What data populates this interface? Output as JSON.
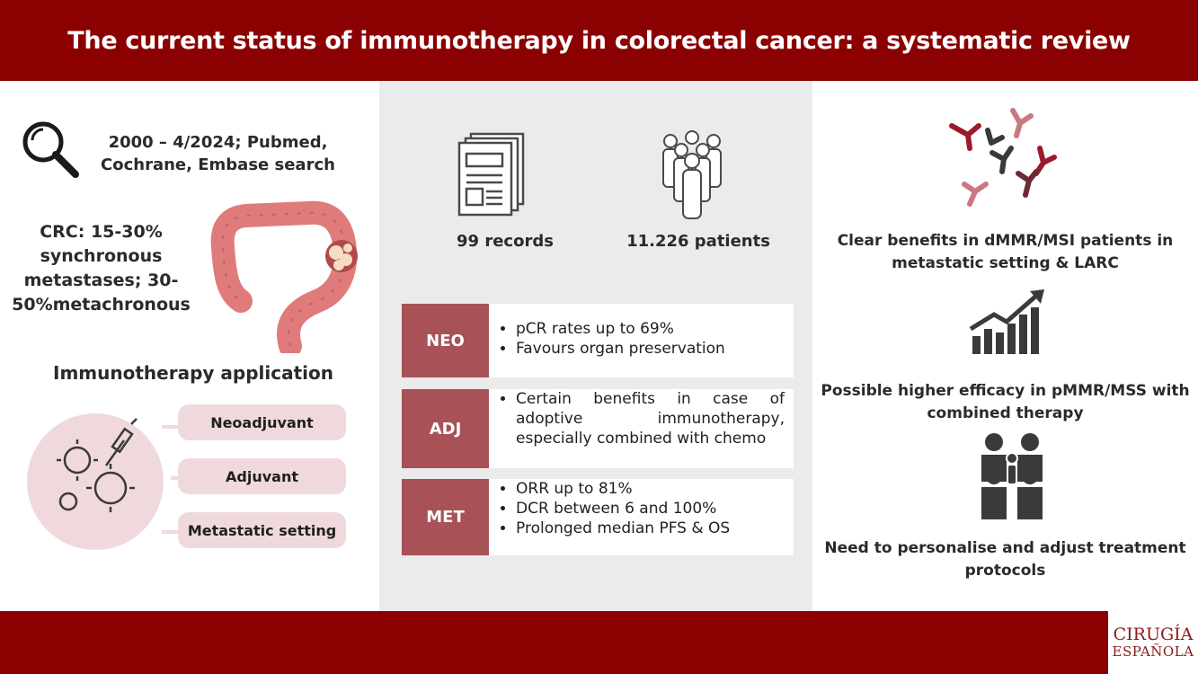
{
  "header": {
    "title": "The current status of immunotherapy in colorectal cancer: a systematic review"
  },
  "left": {
    "search_text": "2000 – 4/2024; Pubmed, Cochrane, Embase search",
    "crc_text": "CRC: 15-30% synchronous metastases; 30-50%metachronous",
    "application_title": "Immunotherapy application",
    "applications": [
      "Neoadjuvant",
      "Adjuvant",
      "Metastatic setting"
    ]
  },
  "middle": {
    "records": "99 records",
    "patients": "11.226 patients",
    "rows": [
      {
        "tag": "NEO",
        "items": [
          "pCR rates up to 69%",
          "Favours organ preservation"
        ]
      },
      {
        "tag": "ADJ",
        "items": [
          "Certain benefits in case of adoptive immunotherapy, especially combined with chemo"
        ]
      },
      {
        "tag": "MET",
        "items": [
          "ORR up to 81%",
          "DCR between 6 and 100%",
          "Prolonged median PFS & OS"
        ]
      }
    ]
  },
  "right": {
    "text1": "Clear benefits in dMMR/MSI patients in metastatic setting & LARC",
    "text2": "Possible higher efficacy in pMMR/MSS with combined therapy",
    "text3": "Need to personalise and adjust treatment protocols"
  },
  "footer": {
    "logo_line1": "CIRUGÍA",
    "logo_line2": "ESPAÑOLA"
  },
  "colors": {
    "brand": "#8b0000",
    "tag": "#a85258",
    "pill": "#f0d9dc",
    "panel": "#ebebeb"
  }
}
